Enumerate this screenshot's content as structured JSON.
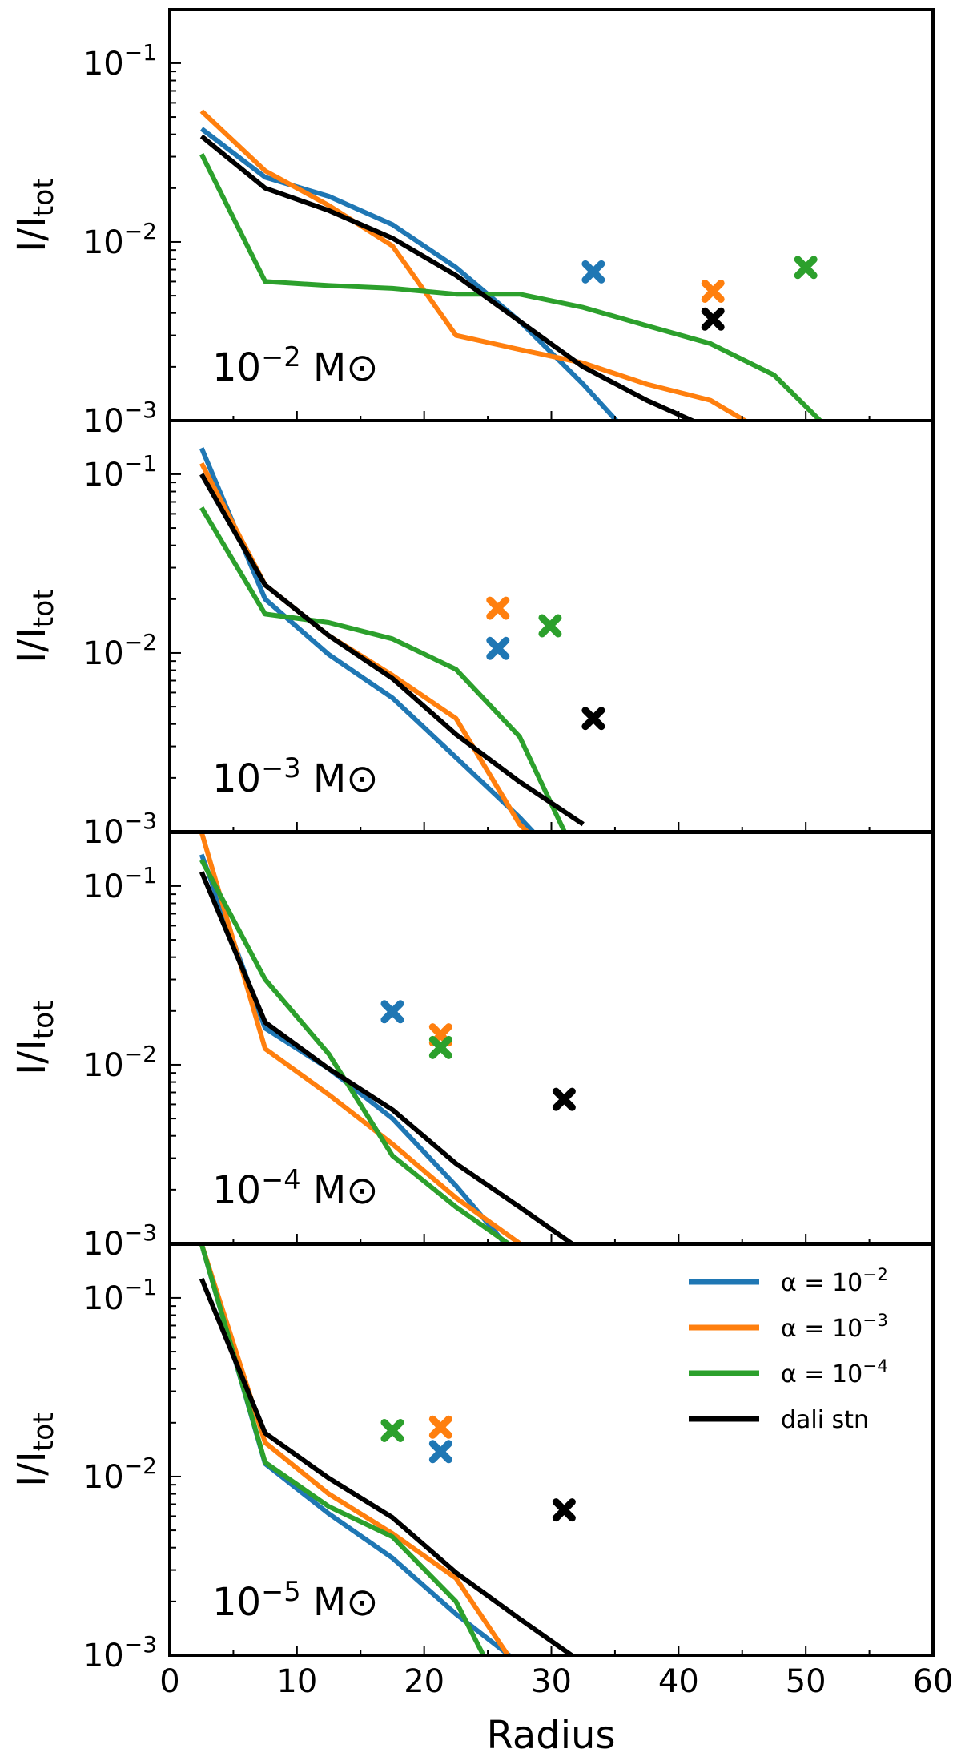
{
  "chart_data": {
    "type": "line",
    "xlabel": "Radius",
    "ylabel": "I/I",
    "ylabel_sub": "tot",
    "xlim": [
      0,
      60
    ],
    "ylim": [
      0.001,
      0.2
    ],
    "yscale": "log",
    "x_ticks": [
      0,
      10,
      20,
      30,
      40,
      50,
      60
    ],
    "x_tick_labels": [
      "0",
      "10",
      "20",
      "30",
      "40",
      "50",
      "60"
    ],
    "y_ticks": [
      {
        "value": 0.1,
        "base": "10",
        "exp": "−1"
      },
      {
        "value": 0.01,
        "base": "10",
        "exp": "−2"
      },
      {
        "value": 0.001,
        "base": "10",
        "exp": "−3"
      }
    ],
    "colors": {
      "a1e2": "#1f77b4",
      "a1e3": "#ff7f0e",
      "a1e4": "#2ca02c",
      "dali": "#000000"
    },
    "legend": {
      "placement": "top-right of bottom panel",
      "entries": [
        {
          "key": "a1e2",
          "prefix": "α = 10",
          "exp": "−2"
        },
        {
          "key": "a1e3",
          "prefix": "α = 10",
          "exp": "−3"
        },
        {
          "key": "a1e4",
          "prefix": "α = 10",
          "exp": "−4"
        },
        {
          "key": "dali",
          "prefix": "dali stn",
          "exp": ""
        }
      ]
    },
    "panels": [
      {
        "label_base": "10",
        "label_exp": "−2",
        "label_unit": " M⊙",
        "series": [
          {
            "key": "a1e2",
            "x": [
              2.5,
              7.5,
              12.5,
              17.5,
              22.5,
              27.5,
              32.5,
              37.5
            ],
            "y": [
              0.043,
              0.023,
              0.018,
              0.0125,
              0.0072,
              0.0036,
              0.0016,
              0.00065
            ]
          },
          {
            "key": "a1e3",
            "x": [
              2.5,
              7.5,
              12.5,
              17.5,
              22.5,
              27.5,
              32.5,
              37.5,
              42.5,
              47.5
            ],
            "y": [
              0.054,
              0.025,
              0.016,
              0.0095,
              0.003,
              0.0025,
              0.0021,
              0.0016,
              0.0013,
              0.0008
            ]
          },
          {
            "key": "a1e4",
            "x": [
              2.5,
              7.5,
              12.5,
              17.5,
              22.5,
              27.5,
              32.5,
              37.5,
              42.5,
              47.5,
              52.5
            ],
            "y": [
              0.031,
              0.006,
              0.0057,
              0.0055,
              0.0051,
              0.0051,
              0.0043,
              0.0034,
              0.0027,
              0.0018,
              0.0008
            ]
          },
          {
            "key": "dali",
            "x": [
              2.5,
              7.5,
              12.5,
              17.5,
              22.5,
              27.5,
              32.5,
              37.5,
              42.5
            ],
            "y": [
              0.039,
              0.02,
              0.015,
              0.0105,
              0.0065,
              0.0036,
              0.002,
              0.0013,
              0.0009
            ]
          }
        ],
        "markers": [
          {
            "key": "a1e2",
            "x": 33.3,
            "y": 0.0068
          },
          {
            "key": "a1e3",
            "x": 42.7,
            "y": 0.0053
          },
          {
            "key": "a1e4",
            "x": 50.0,
            "y": 0.0072
          },
          {
            "key": "dali",
            "x": 42.7,
            "y": 0.0037
          }
        ]
      },
      {
        "label_base": "10",
        "label_exp": "−3",
        "label_unit": " M⊙",
        "series": [
          {
            "key": "a1e2",
            "x": [
              2.5,
              7.5,
              12.5,
              17.5,
              22.5,
              27.5,
              32.5
            ],
            "y": [
              0.14,
              0.02,
              0.0098,
              0.0056,
              0.0026,
              0.0012,
              0.0005
            ]
          },
          {
            "key": "a1e3",
            "x": [
              2.5,
              7.5,
              12.5,
              17.5,
              22.5,
              27.5,
              32.5
            ],
            "y": [
              0.115,
              0.024,
              0.0125,
              0.0075,
              0.0043,
              0.0011,
              0.0005
            ]
          },
          {
            "key": "a1e4",
            "x": [
              2.5,
              7.5,
              12.5,
              17.5,
              22.5,
              27.5,
              32.5
            ],
            "y": [
              0.065,
              0.0165,
              0.0148,
              0.012,
              0.0081,
              0.0034,
              0.0006
            ]
          },
          {
            "key": "dali",
            "x": [
              2.5,
              7.5,
              12.5,
              17.5,
              22.5,
              27.5,
              32.5
            ],
            "y": [
              0.1,
              0.024,
              0.0125,
              0.0072,
              0.0035,
              0.0019,
              0.0011
            ]
          }
        ],
        "markers": [
          {
            "key": "a1e3",
            "x": 25.8,
            "y": 0.0178
          },
          {
            "key": "a1e2",
            "x": 25.8,
            "y": 0.0106
          },
          {
            "key": "a1e4",
            "x": 29.9,
            "y": 0.0142
          },
          {
            "key": "dali",
            "x": 33.3,
            "y": 0.0043
          }
        ]
      },
      {
        "label_base": "10",
        "label_exp": "−4",
        "label_unit": " M⊙",
        "series": [
          {
            "key": "a1e2",
            "x": [
              2.5,
              7.5,
              12.5,
              17.5,
              22.5,
              27.5
            ],
            "y": [
              0.15,
              0.016,
              0.0095,
              0.005,
              0.0021,
              0.0008
            ]
          },
          {
            "key": "a1e3",
            "x": [
              2.5,
              7.5,
              12.5,
              17.5,
              22.5,
              27.5
            ],
            "y": [
              0.2,
              0.0123,
              0.0068,
              0.0036,
              0.0018,
              0.001
            ]
          },
          {
            "key": "a1e4",
            "x": [
              2.5,
              7.5,
              12.5,
              17.5,
              22.5,
              27.5
            ],
            "y": [
              0.14,
              0.03,
              0.0115,
              0.0031,
              0.0016,
              0.0009
            ]
          },
          {
            "key": "dali",
            "x": [
              2.5,
              7.5,
              12.5,
              17.5,
              22.5,
              27.5,
              32.5
            ],
            "y": [
              0.12,
              0.0173,
              0.0095,
              0.0056,
              0.0028,
              0.0016,
              0.0009
            ]
          }
        ],
        "markers": [
          {
            "key": "a1e2",
            "x": 17.5,
            "y": 0.0198
          },
          {
            "key": "a1e3",
            "x": 21.3,
            "y": 0.0147
          },
          {
            "key": "a1e4",
            "x": 21.3,
            "y": 0.0125
          },
          {
            "key": "dali",
            "x": 31.0,
            "y": 0.0064
          }
        ]
      },
      {
        "label_base": "10",
        "label_exp": "−5",
        "label_unit": " M⊙",
        "series": [
          {
            "key": "a1e2",
            "x": [
              2.5,
              7.5,
              12.5,
              17.5,
              22.5,
              27.5
            ],
            "y": [
              0.2,
              0.0118,
              0.0062,
              0.0035,
              0.0017,
              0.0009
            ]
          },
          {
            "key": "a1e3",
            "x": [
              2.5,
              7.5,
              12.5,
              17.5,
              22.5,
              27.5
            ],
            "y": [
              0.2,
              0.0155,
              0.008,
              0.0048,
              0.0027,
              0.0008
            ]
          },
          {
            "key": "a1e4",
            "x": [
              2.5,
              7.5,
              12.5,
              17.5,
              22.5,
              27.5
            ],
            "y": [
              0.2,
              0.012,
              0.0068,
              0.0046,
              0.002,
              0.0004
            ]
          },
          {
            "key": "dali",
            "x": [
              2.5,
              7.5,
              12.5,
              17.5,
              22.5,
              27.5,
              32.5
            ],
            "y": [
              0.128,
              0.0175,
              0.0098,
              0.0059,
              0.0029,
              0.0016,
              0.0009
            ]
          }
        ],
        "markers": [
          {
            "key": "a1e4",
            "x": 17.5,
            "y": 0.0181
          },
          {
            "key": "a1e3",
            "x": 21.3,
            "y": 0.0189
          },
          {
            "key": "a1e2",
            "x": 21.3,
            "y": 0.0138
          },
          {
            "key": "dali",
            "x": 31.0,
            "y": 0.0065
          }
        ]
      }
    ]
  }
}
